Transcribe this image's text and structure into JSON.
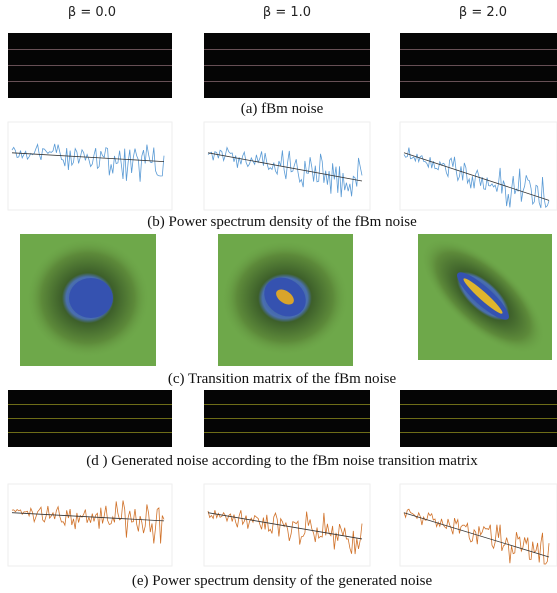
{
  "column_headers": [
    "β = 0.0",
    "β = 1.0",
    "β = 2.0"
  ],
  "captions": [
    "(a) fBm noise",
    "(b) Power spectrum density of the fBm noise",
    "(c) Transition matrix of the fBm noise",
    "(d ) Generated noise according to the fBm noise transition matrix",
    "(e) Power spectrum density of the generated noise"
  ]
}
